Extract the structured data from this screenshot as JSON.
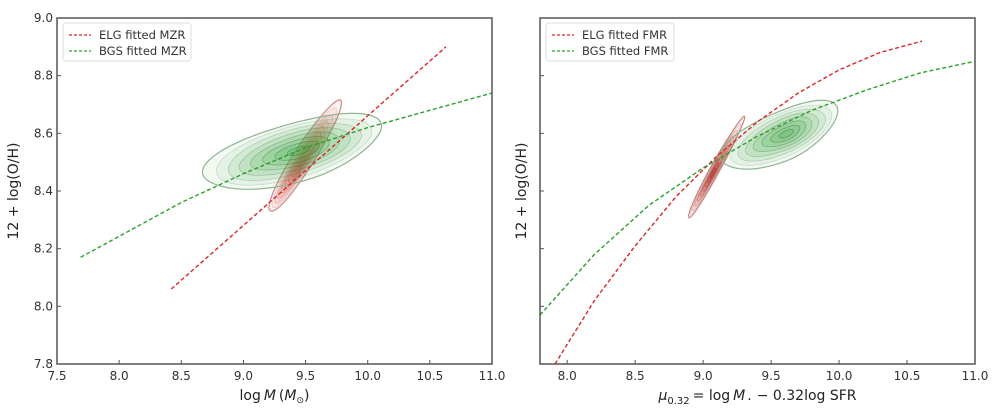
{
  "chart_data": [
    {
      "type": "contour",
      "title": "",
      "xlabel": "log M (M☉)",
      "ylabel": "12 + log(O/H)",
      "xlim": [
        7.5,
        11.0
      ],
      "ylim": [
        7.8,
        9.0
      ],
      "xticks": [
        "7.5",
        "8.0",
        "8.5",
        "9.0",
        "9.5",
        "10.0",
        "10.5",
        "11.0"
      ],
      "yticks": [
        "7.8",
        "8.0",
        "8.2",
        "8.4",
        "8.6",
        "8.8",
        "9.0"
      ],
      "show_ytick_labels": true,
      "legend": {
        "position": "top-left",
        "entries": [
          {
            "label": "ELG fitted MZR",
            "color": "#d62728",
            "style": "dashed"
          },
          {
            "label": "BGS fitted MZR",
            "color": "#2ca02c",
            "style": "dashed"
          }
        ]
      },
      "series": [
        {
          "name": "ELG fitted MZR",
          "type": "line",
          "color": "#d62728",
          "x": [
            8.42,
            10.63
          ],
          "y": [
            8.06,
            8.9
          ]
        },
        {
          "name": "BGS fitted MZR",
          "type": "line",
          "color": "#2ca02c",
          "x": [
            7.69,
            8.5,
            9.0,
            9.5,
            10.0,
            10.5,
            11.0
          ],
          "y": [
            8.17,
            8.36,
            8.46,
            8.55,
            8.62,
            8.68,
            8.74
          ]
        }
      ],
      "density": [
        {
          "name": "ELG",
          "color": "#e8544a",
          "center": [
            9.47,
            8.5
          ],
          "spread_x": [
            0.85,
            0.95
          ],
          "spread_y": [
            0.43,
            0.33
          ],
          "tilt_deg": 52,
          "levels": 10
        },
        {
          "name": "BGS",
          "color": "#4caf50",
          "center": [
            9.45,
            8.54
          ],
          "spread_x": [
            1.6,
            1.35
          ],
          "spread_y": [
            0.22,
            0.22
          ],
          "tilt_deg": 14,
          "levels": 8
        }
      ]
    },
    {
      "type": "contour",
      "title": "",
      "xlabel": "μ0.32 = log M★ − 0.32 log SFR",
      "ylabel": "12 + log(O/H)",
      "xlim": [
        7.8,
        11.0
      ],
      "ylim": [
        7.8,
        9.0
      ],
      "xticks": [
        "8.0",
        "8.5",
        "9.0",
        "9.5",
        "10.0",
        "10.5",
        "11.0"
      ],
      "yticks": [
        "7.8",
        "8.0",
        "8.2",
        "8.4",
        "8.6",
        "8.8",
        "9.0"
      ],
      "show_ytick_labels": false,
      "legend": {
        "position": "top-left",
        "entries": [
          {
            "label": "ELG fitted FMR",
            "color": "#d62728",
            "style": "dashed"
          },
          {
            "label": "BGS fitted FMR",
            "color": "#2ca02c",
            "style": "dashed"
          }
        ]
      },
      "series": [
        {
          "name": "ELG fitted FMR",
          "type": "line",
          "color": "#d62728",
          "x": [
            7.91,
            8.2,
            8.5,
            8.8,
            9.1,
            9.4,
            9.7,
            10.0,
            10.3,
            10.61
          ],
          "y": [
            7.8,
            8.02,
            8.21,
            8.38,
            8.52,
            8.64,
            8.74,
            8.82,
            8.88,
            8.92
          ]
        },
        {
          "name": "BGS fitted FMR",
          "type": "line",
          "color": "#2ca02c",
          "x": [
            7.8,
            8.2,
            8.6,
            9.0,
            9.4,
            9.8,
            10.2,
            10.6,
            11.0
          ],
          "y": [
            7.97,
            8.18,
            8.35,
            8.48,
            8.59,
            8.68,
            8.75,
            8.81,
            8.85
          ]
        }
      ],
      "density": [
        {
          "name": "ELG",
          "color": "#e8544a",
          "center": [
            9.07,
            8.46
          ],
          "spread_x": [
            0.62,
            0.78
          ],
          "spread_y": [
            0.42,
            0.37
          ],
          "tilt_deg": 58,
          "levels": 10
        },
        {
          "name": "BGS",
          "color": "#4caf50",
          "center": [
            9.62,
            8.6
          ],
          "spread_x": [
            1.05,
            0.78
          ],
          "spread_y": [
            0.2,
            0.2
          ],
          "tilt_deg": 20,
          "levels": 8
        }
      ]
    }
  ]
}
